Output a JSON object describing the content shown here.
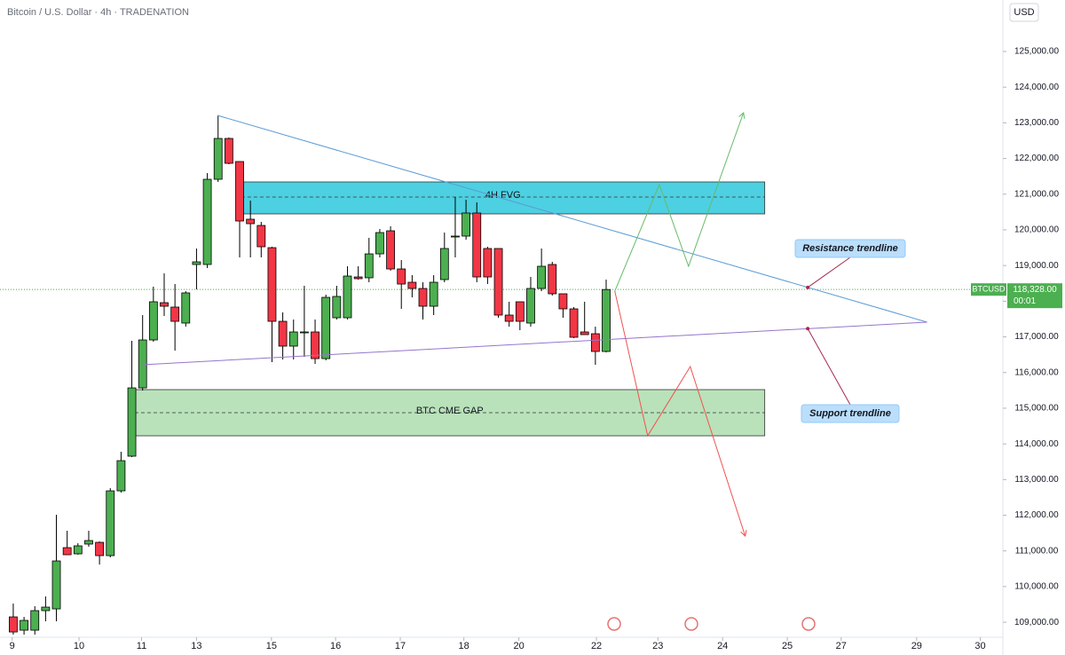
{
  "chart_data": {
    "type": "candlestick",
    "title": "Bitcoin / U.S. Dollar · 4h · TRADENATION",
    "currency": "USD",
    "symbol": "BTCUSD",
    "open": [
      109151,
      108778,
      108778,
      109326,
      109375,
      111092,
      110918,
      111192,
      111241,
      110868,
      112684,
      113655,
      115570,
      116914,
      117959,
      117835,
      117387,
      119029,
      119029,
      121417,
      122562,
      121915,
      120298,
      120123,
      119501,
      117436,
      116740,
      117113,
      117138,
      116391,
      117536,
      117536,
      118680,
      118656,
      119327,
      119974,
      118904,
      118531,
      118357,
      117859,
      118606,
      119800,
      119825,
      120472,
      119477,
      119477,
      117611,
      117984,
      117387,
      118357,
      119029,
      118208,
      117785,
      117138,
      117088,
      116591
    ],
    "high": [
      109525,
      109150,
      109450,
      109724,
      112013,
      111565,
      111216,
      111565,
      111266,
      112759,
      113779,
      116889,
      117611,
      118407,
      118780,
      118481,
      118282,
      119477,
      121591,
      123209,
      122587,
      121915,
      120820,
      120223,
      119526,
      117685,
      117486,
      118432,
      117486,
      118183,
      118432,
      118979,
      118979,
      119775,
      120024,
      120099,
      119153,
      118730,
      118531,
      118730,
      119924,
      120920,
      120845,
      120770,
      119526,
      119477,
      117984,
      117984,
      118680,
      119477,
      119103,
      118208,
      117835,
      117984,
      117287,
      118606
    ],
    "low": [
      108654,
      108654,
      108654,
      109027,
      109027,
      110893,
      110893,
      111117,
      110619,
      110818,
      112635,
      113630,
      115496,
      116864,
      117586,
      116615,
      117287,
      118332,
      118929,
      121343,
      121840,
      119228,
      119228,
      119228,
      116292,
      116367,
      116367,
      116441,
      116242,
      116342,
      117486,
      117486,
      118606,
      118531,
      119228,
      118855,
      117785,
      118108,
      117486,
      117611,
      118531,
      119228,
      119725,
      118531,
      118481,
      117536,
      117287,
      117188,
      117287,
      118282,
      118158,
      117536,
      116964,
      117063,
      116217,
      116566
    ],
    "close": [
      108728,
      109052,
      109326,
      109425,
      110719,
      110893,
      111142,
      111291,
      110868,
      112684,
      113530,
      115570,
      116914,
      117984,
      117859,
      117436,
      118233,
      119103,
      121417,
      122562,
      121865,
      120248,
      120173,
      119526,
      117436,
      116740,
      117138,
      117138,
      116391,
      118108,
      118133,
      118705,
      118631,
      119327,
      119924,
      118904,
      118481,
      118357,
      117859,
      118531,
      119477,
      119825,
      120472,
      118680,
      118680,
      117611,
      117436,
      117436,
      118357,
      118979,
      118208,
      117785,
      116989,
      117063,
      116591,
      118328
    ],
    "up_color": "#4caf50",
    "down_color": "#f23645",
    "ylim": [
      108580,
      126443
    ],
    "yticks": [
      {
        "value": 109000,
        "label": "109,000.00"
      },
      {
        "value": 110000,
        "label": "110,000.00"
      },
      {
        "value": 111000,
        "label": "111,000.00"
      },
      {
        "value": 112000,
        "label": "112,000.00"
      },
      {
        "value": 113000,
        "label": "113,000.00"
      },
      {
        "value": 114000,
        "label": "114,000.00"
      },
      {
        "value": 115000,
        "label": "115,000.00"
      },
      {
        "value": 116000,
        "label": "116,000.00"
      },
      {
        "value": 117000,
        "label": "117,000.00"
      },
      {
        "value": 118000,
        "label": "118,000.00"
      },
      {
        "value": 119000,
        "label": "119,000.00"
      },
      {
        "value": 120000,
        "label": "120,000.00"
      },
      {
        "value": 121000,
        "label": "121,000.00"
      },
      {
        "value": 122000,
        "label": "122,000.00"
      },
      {
        "value": 123000,
        "label": "123,000.00"
      },
      {
        "value": 124000,
        "label": "124,000.00"
      },
      {
        "value": 125000,
        "label": "125,000.00"
      }
    ],
    "xlim": [
      -1.23,
      91.8
    ],
    "xticks": [
      {
        "value": -0.1,
        "label": "9"
      },
      {
        "value": 6.1,
        "label": "10"
      },
      {
        "value": 11.9,
        "label": "11"
      },
      {
        "value": 17.0,
        "label": "13"
      },
      {
        "value": 23.95,
        "label": "15"
      },
      {
        "value": 29.9,
        "label": "16"
      },
      {
        "value": 35.9,
        "label": "17"
      },
      {
        "value": 41.8,
        "label": "18"
      },
      {
        "value": 46.9,
        "label": "20"
      },
      {
        "value": 54.1,
        "label": "22"
      },
      {
        "value": 59.8,
        "label": "23"
      },
      {
        "value": 65.8,
        "label": "24"
      },
      {
        "value": 71.8,
        "label": "25"
      },
      {
        "value": 76.8,
        "label": "27"
      },
      {
        "value": 83.8,
        "label": "29"
      },
      {
        "value": 89.7,
        "label": "30"
      }
    ],
    "last_price": {
      "value": 118328,
      "label": "118,328.00"
    },
    "countdown": "00:01",
    "zones": [
      {
        "label": "4H FVG",
        "x": [
          21.15,
          69.71
        ],
        "y": [
          120447,
          121343
        ],
        "mid": 120920,
        "color": "#4dd0e1"
      },
      {
        "label": "BTC CME GAP",
        "x": [
          11.28,
          69.71
        ],
        "y": [
          114227,
          115521
        ],
        "mid": 114874,
        "color": "#b9e2ba"
      }
    ],
    "trendlines": [
      {
        "label": "Resistance trendline",
        "x": [
          18.93,
          84.77
        ],
        "y": [
          123209,
          117412
        ],
        "color": "#5b9bd5"
      },
      {
        "label": "Support trendline",
        "x": [
          11.93,
          84.77
        ],
        "y": [
          116217,
          117412
        ],
        "color": "#9575cd"
      }
    ],
    "paths": [
      {
        "x": [
          55.8,
          59.93,
          62.64,
          67.74
        ],
        "y": [
          118282,
          121268,
          118979,
          123283
        ],
        "color": "#66bb6a"
      },
      {
        "x": [
          55.8,
          58.85,
          62.8,
          67.9
        ],
        "y": [
          118282,
          114227,
          116167,
          111416
        ],
        "color": "#ef5350"
      }
    ]
  }
}
